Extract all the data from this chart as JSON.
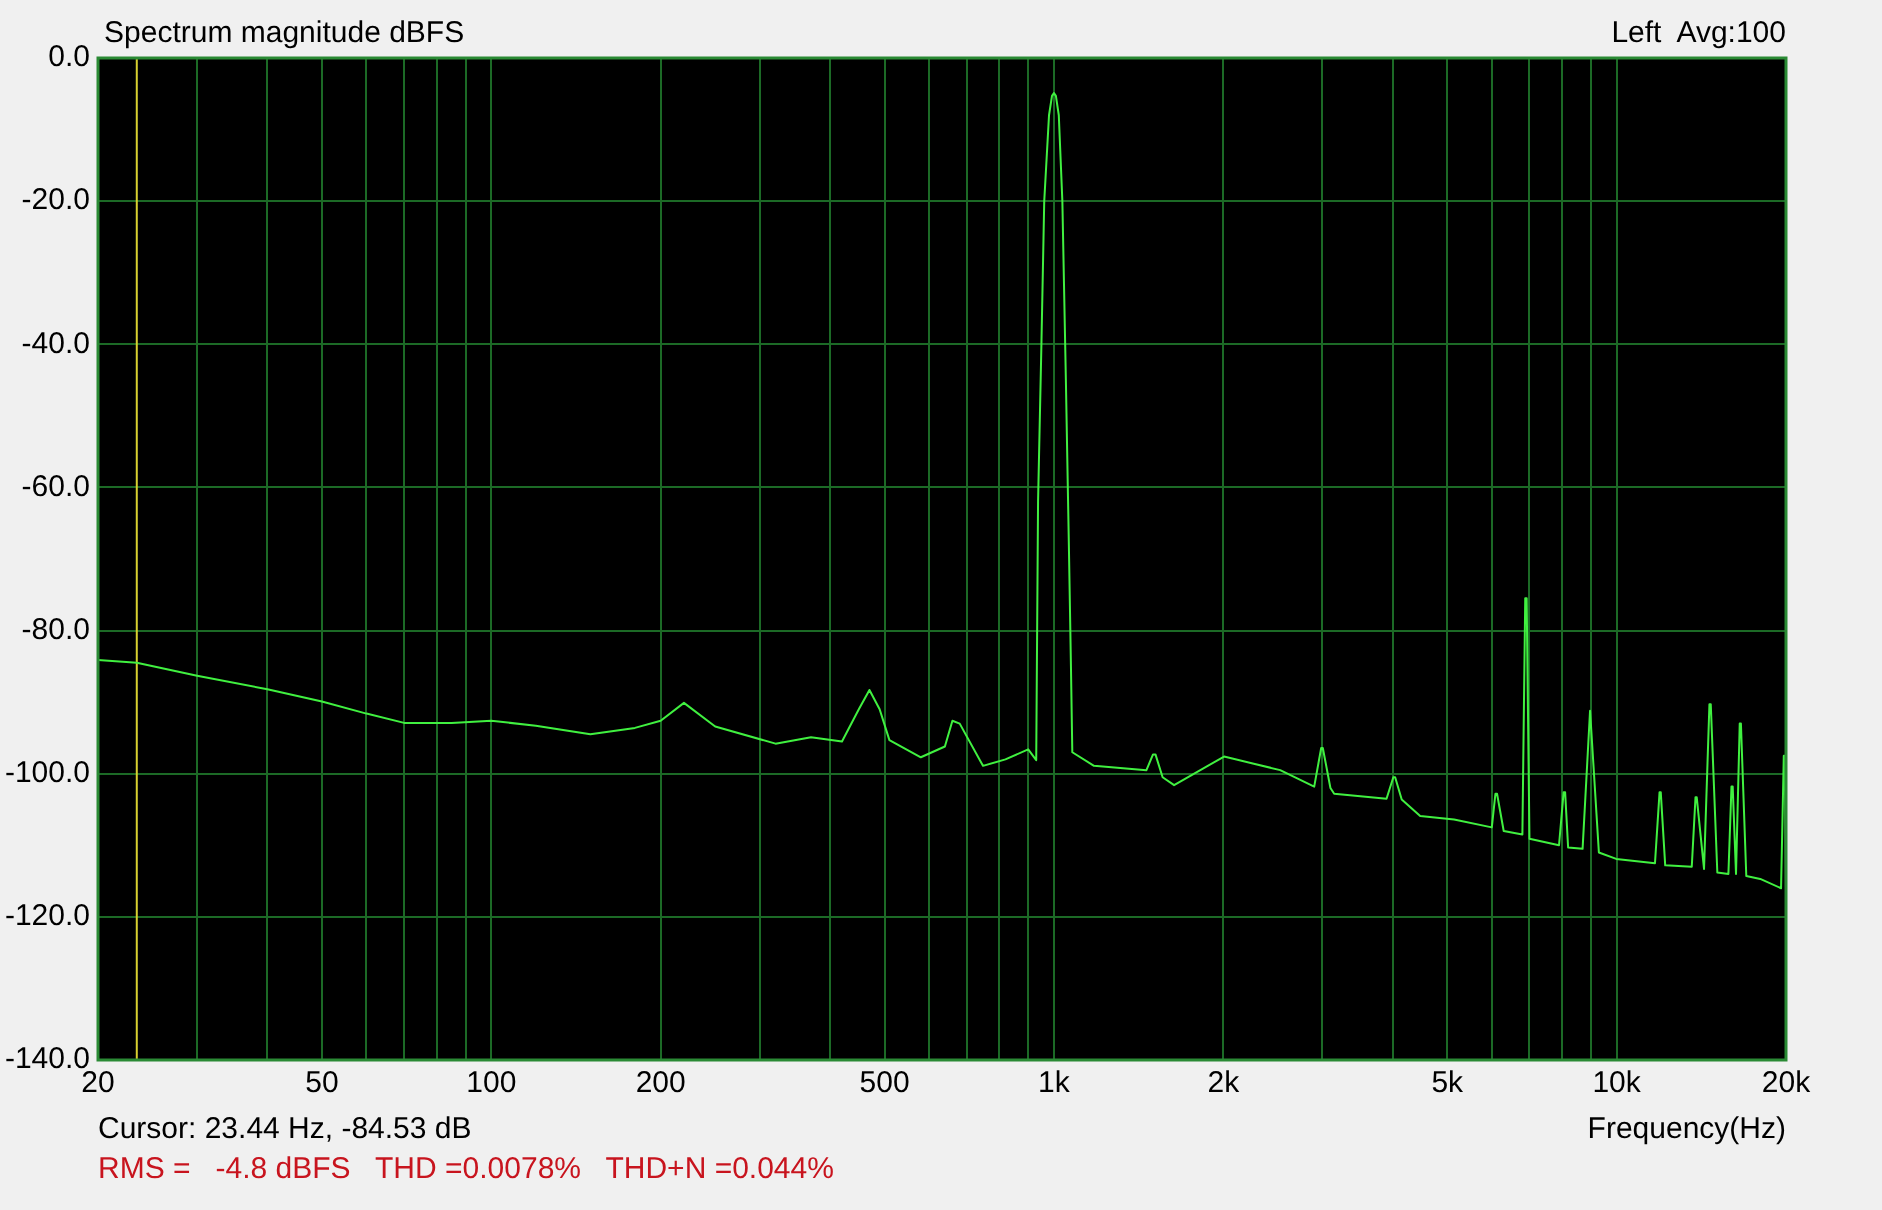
{
  "chart_data": {
    "type": "line",
    "title": "Spectrum magnitude dBFS",
    "subtitle": "Left  Avg:100",
    "xlabel": "Frequency(Hz)",
    "annotations": [
      "Cursor: 23.44 Hz, -84.53 dB",
      "RMS =   -4.8 dBFS   THD =0.0078%   THD+N =0.044%"
    ],
    "log": "x",
    "grid": true,
    "legend": false,
    "marker": "none",
    "line_style": "solid",
    "xlim": [
      20,
      20000
    ],
    "xticks": [
      {
        "value": 20,
        "label": "20"
      },
      {
        "value": 30,
        "label": null
      },
      {
        "value": 40,
        "label": null
      },
      {
        "value": 50,
        "label": "50"
      },
      {
        "value": 60,
        "label": null
      },
      {
        "value": 70,
        "label": null
      },
      {
        "value": 80,
        "label": null
      },
      {
        "value": 90,
        "label": null
      },
      {
        "value": 100,
        "label": "100"
      },
      {
        "value": 200,
        "label": "200"
      },
      {
        "value": 300,
        "label": null
      },
      {
        "value": 400,
        "label": null
      },
      {
        "value": 500,
        "label": "500"
      },
      {
        "value": 600,
        "label": null
      },
      {
        "value": 700,
        "label": null
      },
      {
        "value": 800,
        "label": null
      },
      {
        "value": 900,
        "label": null
      },
      {
        "value": 1000,
        "label": "1k"
      },
      {
        "value": 2000,
        "label": "2k"
      },
      {
        "value": 3000,
        "label": null
      },
      {
        "value": 4000,
        "label": null
      },
      {
        "value": 5000,
        "label": "5k"
      },
      {
        "value": 6000,
        "label": null
      },
      {
        "value": 7000,
        "label": null
      },
      {
        "value": 8000,
        "label": null
      },
      {
        "value": 9000,
        "label": null
      },
      {
        "value": 10000,
        "label": "10k"
      },
      {
        "value": 20000,
        "label": "20k"
      }
    ],
    "ylim": [
      -140,
      0
    ],
    "yticks": [
      {
        "value": -140,
        "label": "-140.0"
      },
      {
        "value": -120,
        "label": "-120.0"
      },
      {
        "value": -100,
        "label": "-100.0"
      },
      {
        "value": -80,
        "label": "-80.0"
      },
      {
        "value": -60,
        "label": "-60.0"
      },
      {
        "value": -40,
        "label": "-40.0"
      },
      {
        "value": -20,
        "label": "-20.0"
      },
      {
        "value": 0,
        "label": "0.0"
      }
    ],
    "ref_lines": [
      {
        "axis": "x",
        "value": 23.44,
        "color": "#d8d030"
      }
    ],
    "series": [
      {
        "color": "#40f040",
        "x": [
          20,
          23.44,
          30,
          40,
          50,
          60,
          70,
          85,
          100,
          120,
          150,
          180,
          200,
          220,
          250,
          320,
          370,
          420,
          450,
          470,
          490,
          510,
          580,
          640,
          660,
          680,
          748,
          820,
          900,
          930,
          937,
          950,
          961,
          980,
          992,
          1000,
          1008,
          1020,
          1035,
          1050,
          1064,
          1072,
          1078,
          1178,
          1460,
          1500,
          1515,
          1560,
          1635,
          2006,
          2524,
          2901,
          2985,
          3005,
          3100,
          3148,
          3900,
          4010,
          4040,
          4150,
          4476,
          5142,
          6000,
          6090,
          6130,
          6300,
          6800,
          6880,
          6920,
          7000,
          7900,
          8050,
          8100,
          8200,
          8700,
          8970,
          9030,
          9300,
          9985,
          11700,
          11920,
          11980,
          12200,
          13600,
          13810,
          13880,
          14300,
          14620,
          14700,
          15100,
          15800,
          16000,
          16080,
          16300,
          16550,
          16630,
          17000,
          18000,
          19600,
          19820,
          19900,
          20000
        ],
        "values": [
          -84.1,
          -84.5,
          -86.3,
          -88.2,
          -89.9,
          -91.6,
          -92.9,
          -92.9,
          -92.6,
          -93.3,
          -94.5,
          -93.6,
          -92.6,
          -90.1,
          -93.4,
          -95.8,
          -94.9,
          -95.5,
          -91,
          -88.3,
          -91,
          -95.3,
          -97.7,
          -96.2,
          -92.6,
          -93,
          -98.9,
          -98,
          -96.6,
          -98.1,
          -62,
          -40,
          -20,
          -8,
          -5.3,
          -4.9,
          -5.3,
          -8,
          -20,
          -45,
          -70,
          -85,
          -97,
          -98.9,
          -99.5,
          -97.3,
          -97.3,
          -100.5,
          -101.6,
          -97.6,
          -99.5,
          -101.8,
          -96.4,
          -96.4,
          -102,
          -102.8,
          -103.5,
          -100.5,
          -100.5,
          -103.6,
          -105.9,
          -106.4,
          -107.5,
          -102.8,
          -102.8,
          -108,
          -108.5,
          -75.5,
          -75.5,
          -109.1,
          -110,
          -102.6,
          -102.6,
          -110.3,
          -110.5,
          -91.2,
          -91.2,
          -111,
          -111.9,
          -112.5,
          -102.6,
          -102.6,
          -112.8,
          -113,
          -103.3,
          -103.3,
          -113.3,
          -90.3,
          -90.3,
          -113.8,
          -114,
          -101.8,
          -101.8,
          -114,
          -93,
          -93,
          -114.3,
          -114.7,
          -116,
          -97.5,
          -97.5,
          -116.4
        ]
      }
    ]
  }
}
